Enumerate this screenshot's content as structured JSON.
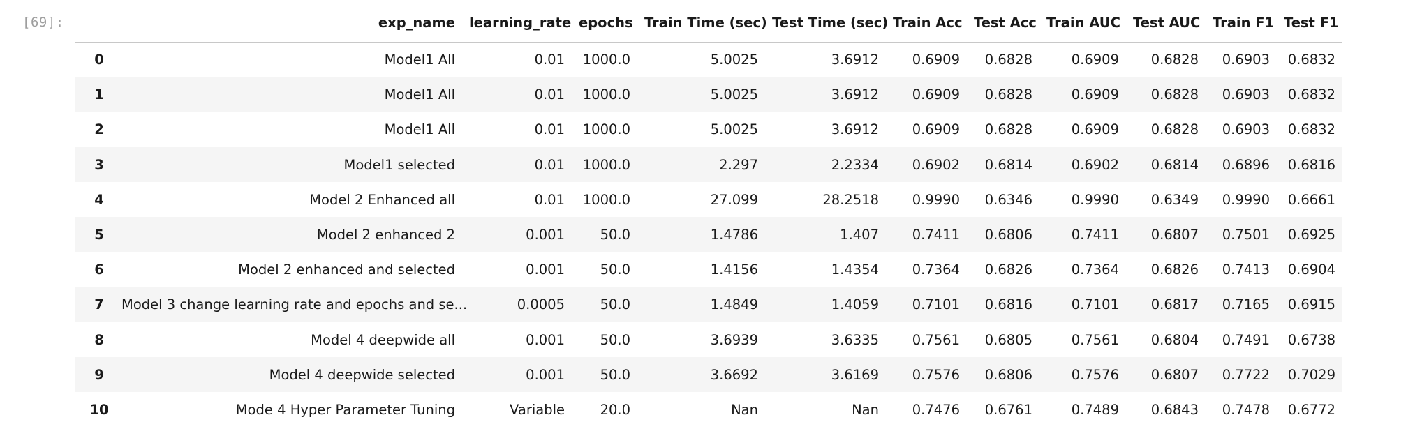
{
  "cell_prompt": "[69]:",
  "table": {
    "columns": [
      "",
      "exp_name",
      "learning_rate",
      "epochs",
      "Train Time (sec)",
      "Test Time (sec)",
      "Train Acc",
      "Test Acc",
      "Train AUC",
      "Test AUC",
      "Train F1",
      "Test F1"
    ],
    "rows": [
      {
        "index": "0",
        "cells": [
          "Model1 All",
          "0.01",
          "1000.0",
          "5.0025",
          "3.6912",
          "0.6909",
          "0.6828",
          "0.6909",
          "0.6828",
          "0.6903",
          "0.6832"
        ]
      },
      {
        "index": "1",
        "cells": [
          "Model1 All",
          "0.01",
          "1000.0",
          "5.0025",
          "3.6912",
          "0.6909",
          "0.6828",
          "0.6909",
          "0.6828",
          "0.6903",
          "0.6832"
        ]
      },
      {
        "index": "2",
        "cells": [
          "Model1 All",
          "0.01",
          "1000.0",
          "5.0025",
          "3.6912",
          "0.6909",
          "0.6828",
          "0.6909",
          "0.6828",
          "0.6903",
          "0.6832"
        ]
      },
      {
        "index": "3",
        "cells": [
          "Model1 selected",
          "0.01",
          "1000.0",
          "2.297",
          "2.2334",
          "0.6902",
          "0.6814",
          "0.6902",
          "0.6814",
          "0.6896",
          "0.6816"
        ]
      },
      {
        "index": "4",
        "cells": [
          "Model 2 Enhanced all",
          "0.01",
          "1000.0",
          "27.099",
          "28.2518",
          "0.9990",
          "0.6346",
          "0.9990",
          "0.6349",
          "0.9990",
          "0.6661"
        ]
      },
      {
        "index": "5",
        "cells": [
          "Model 2 enhanced 2",
          "0.001",
          "50.0",
          "1.4786",
          "1.407",
          "0.7411",
          "0.6806",
          "0.7411",
          "0.6807",
          "0.7501",
          "0.6925"
        ]
      },
      {
        "index": "6",
        "cells": [
          "Model 2 enhanced and selected",
          "0.001",
          "50.0",
          "1.4156",
          "1.4354",
          "0.7364",
          "0.6826",
          "0.7364",
          "0.6826",
          "0.7413",
          "0.6904"
        ]
      },
      {
        "index": "7",
        "cells": [
          "Model 3 change learning rate and epochs and se...",
          "0.0005",
          "50.0",
          "1.4849",
          "1.4059",
          "0.7101",
          "0.6816",
          "0.7101",
          "0.6817",
          "0.7165",
          "0.6915"
        ]
      },
      {
        "index": "8",
        "cells": [
          "Model 4 deepwide all",
          "0.001",
          "50.0",
          "3.6939",
          "3.6335",
          "0.7561",
          "0.6805",
          "0.7561",
          "0.6804",
          "0.7491",
          "0.6738"
        ]
      },
      {
        "index": "9",
        "cells": [
          "Model 4 deepwide selected",
          "0.001",
          "50.0",
          "3.6692",
          "3.6169",
          "0.7576",
          "0.6806",
          "0.7576",
          "0.6807",
          "0.7722",
          "0.7029"
        ]
      },
      {
        "index": "10",
        "cells": [
          "Mode 4 Hyper Parameter Tuning",
          "Variable",
          "20.0",
          "Nan",
          "Nan",
          "0.7476",
          "0.6761",
          "0.7489",
          "0.6843",
          "0.7478",
          "0.6772"
        ]
      }
    ]
  }
}
